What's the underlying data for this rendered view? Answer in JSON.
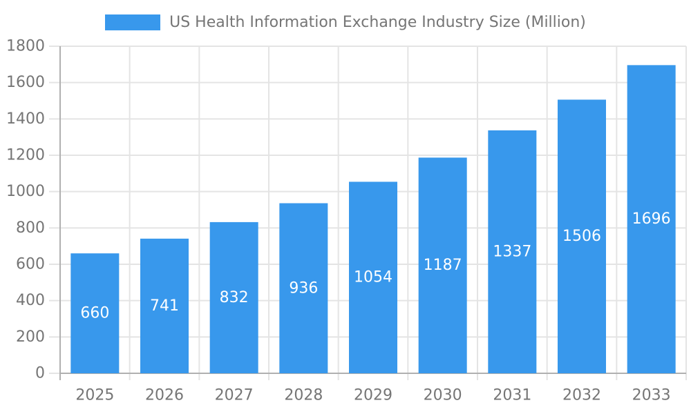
{
  "chart_data": {
    "type": "bar",
    "title": "US Health Information Exchange Industry Size (Million)",
    "categories": [
      "2025",
      "2026",
      "2027",
      "2028",
      "2029",
      "2030",
      "2031",
      "2032",
      "2033"
    ],
    "values": [
      660,
      741,
      832,
      936,
      1054,
      1187,
      1337,
      1506,
      1696
    ],
    "series": [
      {
        "name": "US Health Information Exchange Industry Size (Million)",
        "values": [
          660,
          741,
          832,
          936,
          1054,
          1187,
          1337,
          1506,
          1696
        ]
      }
    ],
    "xlabel": "",
    "ylabel": "",
    "ylim": [
      0,
      1800
    ],
    "ytick_step": 200,
    "yticks": [
      0,
      200,
      400,
      600,
      800,
      1000,
      1200,
      1400,
      1600,
      1800
    ],
    "grid": true,
    "legend_position": "top-center",
    "value_labels_shown": true,
    "colors": {
      "bar": "#3898EC",
      "value_label": "#FFFFFF",
      "axis_text": "#757575",
      "gridline": "#E4E4E4",
      "axis_line": "#B0B0B0",
      "background": "#FFFFFF"
    }
  }
}
